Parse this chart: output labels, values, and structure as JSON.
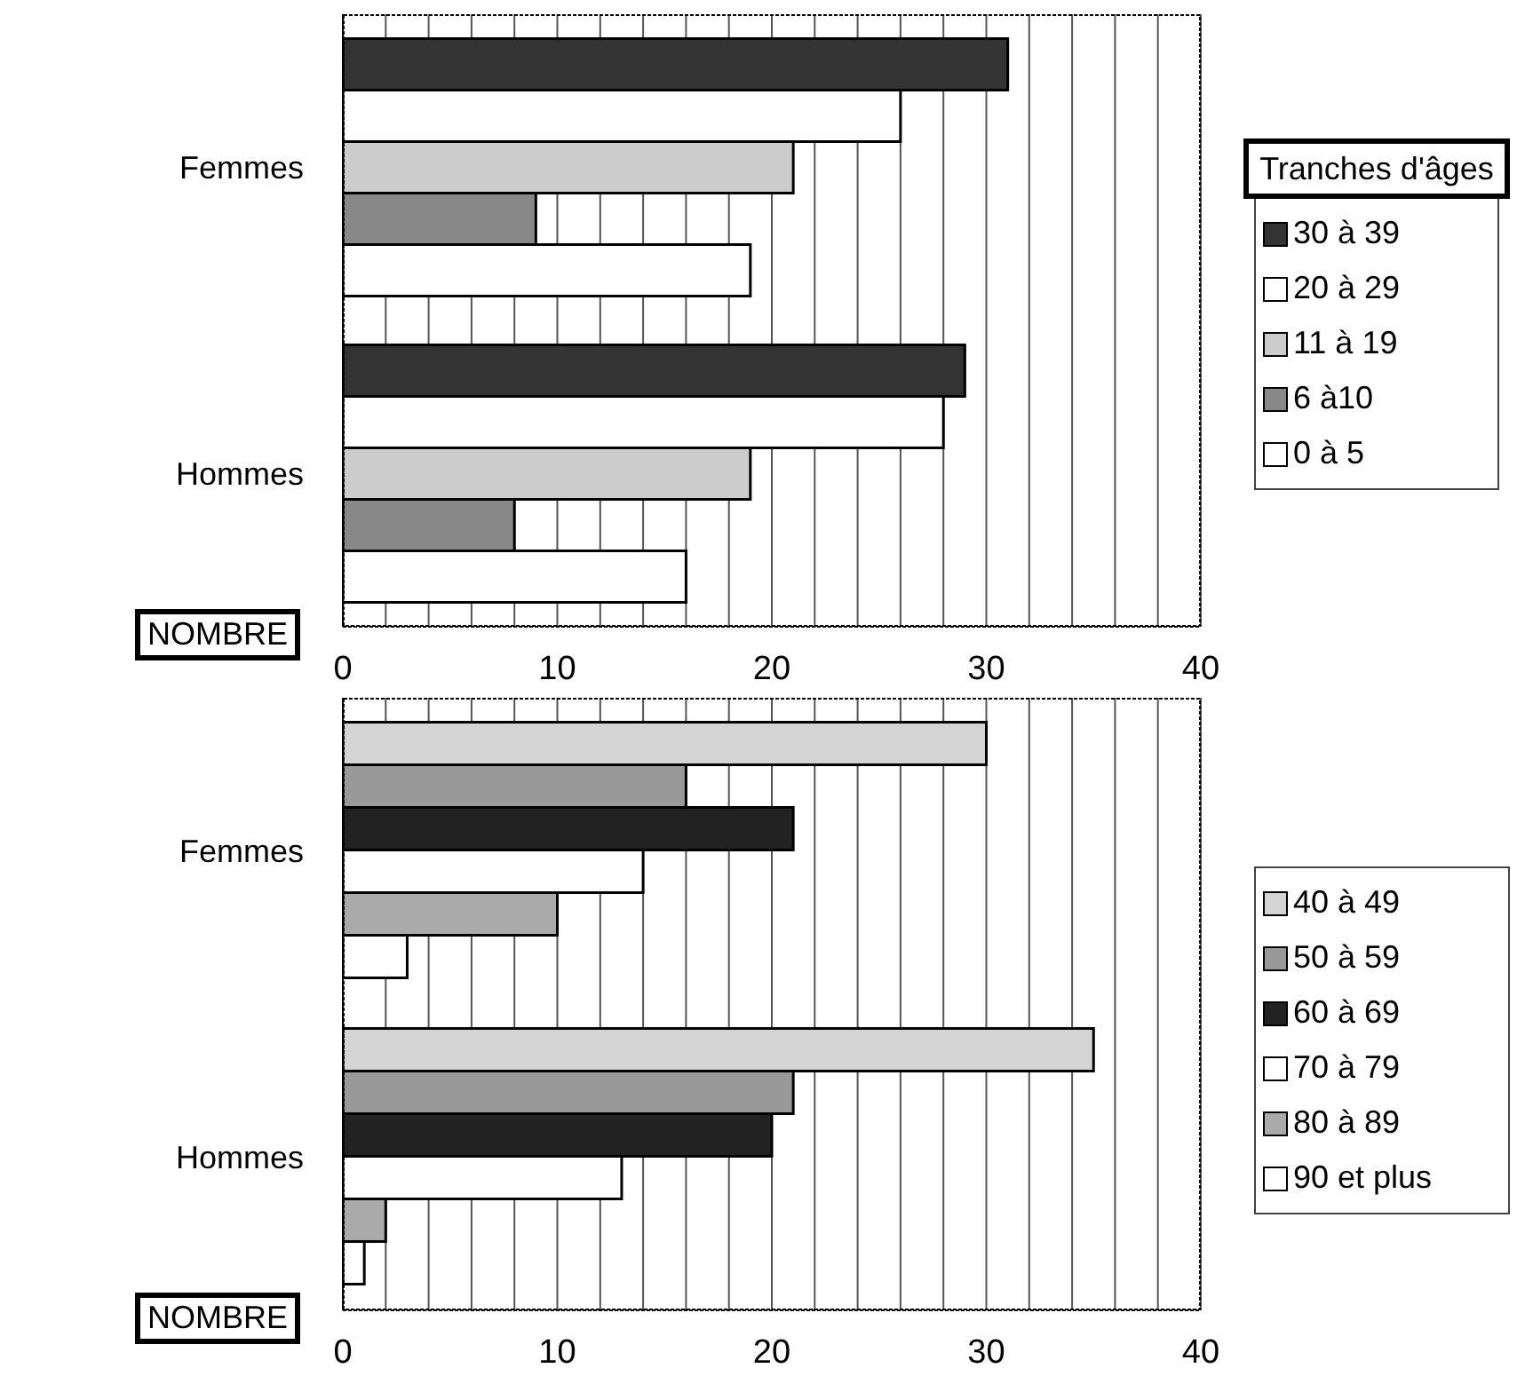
{
  "chart_data": [
    {
      "type": "bar",
      "orientation": "horizontal",
      "categories": [
        "Femmes",
        "Hommes"
      ],
      "legend_title": "Tranches d'âges",
      "legend": "right",
      "grid": "x",
      "xlim": [
        0,
        40
      ],
      "xticks": [
        0,
        {
          "value": 2,
          "label": null
        },
        {
          "value": 4,
          "label": null
        },
        {
          "value": 6,
          "label": null
        },
        {
          "value": 8,
          "label": null
        },
        10,
        {
          "value": 12,
          "label": null
        },
        {
          "value": 14,
          "label": null
        },
        {
          "value": 16,
          "label": null
        },
        {
          "value": 18,
          "label": null
        },
        20,
        {
          "value": 22,
          "label": null
        },
        {
          "value": 24,
          "label": null
        },
        {
          "value": 26,
          "label": null
        },
        {
          "value": 28,
          "label": null
        },
        30,
        {
          "value": 32,
          "label": null
        },
        {
          "value": 34,
          "label": null
        },
        {
          "value": 36,
          "label": null
        },
        {
          "value": 38,
          "label": null
        },
        40
      ],
      "annotations": [
        "NOMBRE"
      ],
      "series": [
        {
          "name": "30 à 39",
          "color": "#333333",
          "values": [
            31,
            29
          ]
        },
        {
          "name": "20 à 29",
          "color": "#ffffff",
          "values": [
            26,
            28
          ]
        },
        {
          "name": "11 à 19",
          "color": "#cccccc",
          "values": [
            21,
            19
          ]
        },
        {
          "name": "6 à10",
          "color": "#888888",
          "values": [
            9,
            8
          ]
        },
        {
          "name": "0 à 5",
          "color": "#ffffff",
          "values": [
            19,
            16
          ]
        }
      ]
    },
    {
      "type": "bar",
      "orientation": "horizontal",
      "categories": [
        "Femmes",
        "Hommes"
      ],
      "legend": "right",
      "grid": "x",
      "xlim": [
        0,
        40
      ],
      "xticks": [
        0,
        {
          "value": 2,
          "label": null
        },
        {
          "value": 4,
          "label": null
        },
        {
          "value": 6,
          "label": null
        },
        {
          "value": 8,
          "label": null
        },
        10,
        {
          "value": 12,
          "label": null
        },
        {
          "value": 14,
          "label": null
        },
        {
          "value": 16,
          "label": null
        },
        {
          "value": 18,
          "label": null
        },
        20,
        {
          "value": 22,
          "label": null
        },
        {
          "value": 24,
          "label": null
        },
        {
          "value": 26,
          "label": null
        },
        {
          "value": 28,
          "label": null
        },
        30,
        {
          "value": 32,
          "label": null
        },
        {
          "value": 34,
          "label": null
        },
        {
          "value": 36,
          "label": null
        },
        {
          "value": 38,
          "label": null
        },
        40
      ],
      "annotations": [
        "NOMBRE"
      ],
      "series": [
        {
          "name": "40 à 49",
          "color": "#d4d4d4",
          "values": [
            30,
            35
          ]
        },
        {
          "name": "50 à 59",
          "color": "#999999",
          "values": [
            16,
            21
          ]
        },
        {
          "name": "60 à 69",
          "color": "#222222",
          "values": [
            21,
            20
          ]
        },
        {
          "name": "70 à 79",
          "color": "#ffffff",
          "values": [
            14,
            13
          ]
        },
        {
          "name": "80 à 89",
          "color": "#aaaaaa",
          "values": [
            10,
            2
          ]
        },
        {
          "name": "90 et plus",
          "color": "#ffffff",
          "values": [
            3,
            1
          ]
        }
      ]
    }
  ]
}
